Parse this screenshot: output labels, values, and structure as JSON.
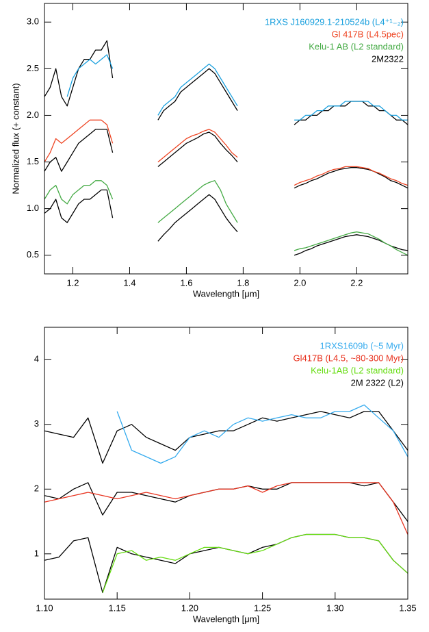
{
  "chart_data": [
    {
      "type": "line",
      "xlabel": "Wavelength [μm]",
      "ylabel": "Normalized flux (+ constant)",
      "xlim": [
        1.1,
        2.38
      ],
      "ylim": [
        0.3,
        3.2
      ],
      "xticks": [
        1.2,
        1.4,
        1.6,
        1.8,
        {
          "value": 2,
          "label": "2.0"
        },
        2.2
      ],
      "yticks": [
        0.5,
        {
          "value": 1,
          "label": "1.0"
        },
        1.5,
        {
          "value": 2,
          "label": "2.0"
        },
        2.5,
        {
          "value": 3,
          "label": "3.0"
        }
      ],
      "x": [
        1.1,
        1.12,
        1.14,
        1.16,
        1.18,
        1.2,
        1.22,
        1.24,
        1.26,
        1.28,
        1.3,
        1.32,
        1.34,
        1.42,
        1.5,
        1.52,
        1.54,
        1.56,
        1.58,
        1.6,
        1.62,
        1.64,
        1.66,
        1.68,
        1.7,
        1.72,
        1.74,
        1.76,
        1.78,
        1.88,
        1.98,
        2.0,
        2.02,
        2.04,
        2.06,
        2.08,
        2.1,
        2.12,
        2.14,
        2.16,
        2.18,
        2.2,
        2.22,
        2.24,
        2.26,
        2.28,
        2.3,
        2.32,
        2.34,
        2.36,
        2.38
      ],
      "comparison": {
        "name": "2M2322",
        "color": "#000000"
      },
      "series": [
        {
          "name": "1RXS J160929.1-210524b (L4⁺¹₋₂)",
          "color": "#1aa0de",
          "values": [
            null,
            null,
            null,
            null,
            2.2,
            2.4,
            2.5,
            2.55,
            2.6,
            2.55,
            2.6,
            2.65,
            2.5,
            null,
            2.0,
            2.1,
            2.15,
            2.2,
            2.3,
            2.35,
            2.4,
            2.45,
            2.5,
            2.55,
            2.5,
            2.4,
            2.3,
            2.2,
            2.1,
            null,
            1.95,
            1.95,
            2.0,
            2.0,
            2.05,
            2.05,
            2.1,
            2.1,
            2.1,
            2.15,
            2.15,
            2.15,
            2.15,
            2.15,
            2.1,
            2.1,
            2.05,
            2.0,
            2.0,
            1.95,
            1.95
          ],
          "comparison_values": [
            2.2,
            2.3,
            2.5,
            2.2,
            2.1,
            2.3,
            2.5,
            2.6,
            2.6,
            2.7,
            2.7,
            2.8,
            2.4,
            null,
            1.95,
            2.05,
            2.1,
            2.15,
            2.25,
            2.3,
            2.35,
            2.4,
            2.45,
            2.5,
            2.45,
            2.35,
            2.25,
            2.15,
            2.05,
            null,
            1.9,
            1.95,
            1.95,
            2.0,
            2.0,
            2.05,
            2.05,
            2.1,
            2.1,
            2.1,
            2.15,
            2.15,
            2.15,
            2.1,
            2.1,
            2.05,
            2.05,
            2.0,
            1.95,
            1.95,
            1.9
          ]
        },
        {
          "name": "Gl 417B (L4.5pec)",
          "color": "#ee4422",
          "values": [
            1.5,
            1.6,
            1.75,
            1.7,
            1.75,
            1.8,
            1.85,
            1.9,
            1.95,
            1.95,
            1.95,
            1.9,
            1.7,
            null,
            1.5,
            1.55,
            1.6,
            1.65,
            1.7,
            1.75,
            1.78,
            1.8,
            1.83,
            1.85,
            1.82,
            1.75,
            1.68,
            1.6,
            1.55,
            null,
            1.25,
            1.28,
            1.3,
            1.32,
            1.35,
            1.37,
            1.4,
            1.42,
            1.43,
            1.45,
            1.45,
            1.45,
            1.44,
            1.43,
            1.4,
            1.38,
            1.35,
            1.32,
            1.3,
            1.27,
            1.25
          ],
          "comparison_values": [
            1.4,
            1.5,
            1.55,
            1.4,
            1.5,
            1.6,
            1.7,
            1.75,
            1.8,
            1.85,
            1.85,
            1.85,
            1.6,
            null,
            1.45,
            1.5,
            1.55,
            1.6,
            1.65,
            1.7,
            1.73,
            1.76,
            1.8,
            1.82,
            1.78,
            1.7,
            1.63,
            1.57,
            1.5,
            null,
            1.22,
            1.25,
            1.27,
            1.3,
            1.32,
            1.35,
            1.38,
            1.4,
            1.42,
            1.43,
            1.44,
            1.44,
            1.43,
            1.42,
            1.4,
            1.37,
            1.34,
            1.3,
            1.28,
            1.25,
            1.22
          ]
        },
        {
          "name": "Kelu-1 AB (L2 standard)",
          "color": "#44aa44",
          "values": [
            1.1,
            1.2,
            1.25,
            1.1,
            1.05,
            1.15,
            1.2,
            1.25,
            1.25,
            1.3,
            1.3,
            1.25,
            1.1,
            null,
            0.85,
            0.9,
            0.95,
            1.0,
            1.05,
            1.1,
            1.15,
            1.2,
            1.25,
            1.28,
            1.3,
            1.2,
            1.05,
            0.95,
            0.85,
            null,
            0.55,
            0.57,
            0.58,
            0.6,
            0.62,
            0.64,
            0.66,
            0.68,
            0.7,
            0.72,
            0.74,
            0.75,
            0.74,
            0.73,
            0.7,
            0.67,
            0.63,
            0.6,
            0.56,
            0.53,
            0.5
          ],
          "comparison_values": [
            0.95,
            1.0,
            1.1,
            0.9,
            0.85,
            0.95,
            1.05,
            1.1,
            1.1,
            1.15,
            1.2,
            1.2,
            0.9,
            null,
            0.65,
            0.72,
            0.78,
            0.85,
            0.9,
            0.95,
            1.0,
            1.05,
            1.1,
            1.15,
            1.1,
            1.0,
            0.9,
            0.82,
            0.75,
            null,
            0.5,
            0.52,
            0.55,
            0.57,
            0.6,
            0.62,
            0.64,
            0.66,
            0.68,
            0.7,
            0.71,
            0.72,
            0.71,
            0.7,
            0.68,
            0.66,
            0.63,
            0.6,
            0.58,
            0.56,
            0.55
          ]
        }
      ]
    },
    {
      "type": "line",
      "xlabel": "Wavelength [μm]",
      "xlim": [
        1.1,
        1.35
      ],
      "ylim": [
        0.3,
        4.5
      ],
      "xticks": [
        {
          "value": 1.1,
          "label": "1.10"
        },
        1.15,
        {
          "value": 1.2,
          "label": "1.20"
        },
        1.25,
        {
          "value": 1.3,
          "label": "1.30"
        },
        1.35
      ],
      "yticks": [
        1,
        2,
        3,
        4
      ],
      "x": [
        1.1,
        1.11,
        1.12,
        1.13,
        1.14,
        1.15,
        1.16,
        1.17,
        1.18,
        1.19,
        1.2,
        1.21,
        1.22,
        1.23,
        1.24,
        1.25,
        1.26,
        1.27,
        1.28,
        1.29,
        1.3,
        1.31,
        1.32,
        1.33,
        1.34,
        1.35
      ],
      "comparison": {
        "name": "2M 2322 (L2)",
        "color": "#000000"
      },
      "series": [
        {
          "name": "1RXS1609b (~5 Myr)",
          "color": "#33aaee",
          "values": [
            null,
            null,
            null,
            null,
            null,
            3.2,
            2.6,
            2.5,
            2.4,
            2.5,
            2.8,
            2.9,
            2.8,
            3.0,
            3.1,
            3.05,
            3.1,
            3.15,
            3.1,
            3.1,
            3.2,
            3.2,
            3.3,
            3.1,
            2.9,
            2.5
          ],
          "comparison_values": [
            2.9,
            2.85,
            2.8,
            3.1,
            2.4,
            2.9,
            3.0,
            2.8,
            2.7,
            2.6,
            2.8,
            2.85,
            2.9,
            2.9,
            3.0,
            3.1,
            3.05,
            3.1,
            3.15,
            3.2,
            3.15,
            3.1,
            3.2,
            3.2,
            2.9,
            2.6
          ]
        },
        {
          "name": "Gl417B (L4.5, ~80-300 Myr)",
          "color": "#e8321e",
          "values": [
            1.8,
            1.85,
            1.9,
            1.95,
            1.9,
            1.85,
            1.9,
            1.95,
            1.9,
            1.85,
            1.9,
            1.95,
            2.0,
            2.0,
            2.05,
            1.95,
            2.05,
            2.1,
            2.1,
            2.1,
            2.1,
            2.1,
            2.1,
            2.1,
            1.8,
            1.3
          ],
          "comparison_values": [
            1.9,
            1.85,
            2.0,
            2.1,
            1.6,
            1.95,
            1.95,
            1.9,
            1.85,
            1.8,
            1.9,
            1.95,
            2.0,
            2.0,
            2.05,
            2.0,
            2.0,
            2.1,
            2.1,
            2.1,
            2.1,
            2.1,
            2.05,
            2.1,
            1.8,
            1.5
          ]
        },
        {
          "name": "Kelu-1AB (L2 standard)",
          "color": "#66dd11",
          "values": [
            null,
            null,
            null,
            null,
            0.4,
            1.0,
            1.05,
            0.9,
            0.95,
            0.9,
            1.0,
            1.1,
            1.1,
            1.05,
            1.0,
            1.05,
            1.15,
            1.25,
            1.3,
            1.3,
            1.3,
            1.25,
            1.25,
            1.2,
            0.9,
            0.7
          ],
          "comparison_values": [
            0.9,
            0.95,
            1.2,
            1.25,
            0.4,
            1.1,
            1.0,
            0.95,
            0.9,
            0.85,
            1.0,
            1.05,
            1.1,
            1.05,
            1.0,
            1.1,
            1.15,
            1.25,
            1.3,
            1.3,
            1.3,
            1.25,
            1.25,
            1.2,
            0.9,
            0.7
          ]
        }
      ]
    }
  ]
}
